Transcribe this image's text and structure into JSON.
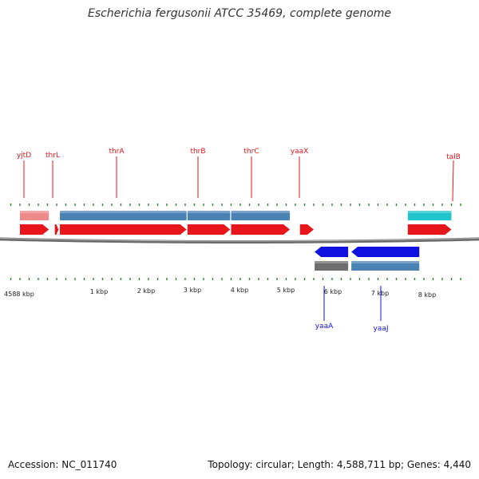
{
  "title": "Escherichia fergusonii ATCC 35469, complete genome",
  "accession": "Accession: NC_011740",
  "stats": "Topology: circular; Length: 4,588,711 bp; Genes: 4,440",
  "colors": {
    "forward_gene": "#e8151b",
    "reverse_gene": "#1010e0",
    "cds_blue": "#4a82b4",
    "cds_grey": "#6e6e6e",
    "cds_pink": "#ee8a8a",
    "cds_cyan": "#20c4cc",
    "tick": "#2a8a2a",
    "backbone": "#6b6b6b"
  },
  "chart_data": {
    "type": "genome-map",
    "scale_labels": [
      "4588 kbp",
      "1 kbp",
      "2 kbp",
      "3 kbp",
      "4 kbp",
      "5 kbp",
      "6 kbp",
      "7 kbp",
      "8 kbp"
    ],
    "scale_kbp": [
      -0.17,
      1,
      2,
      3,
      4,
      5,
      6,
      7,
      8
    ],
    "forward_genes": [
      {
        "name": "yjtD",
        "start_kbp": -0.1,
        "end_kbp": 0.53,
        "track": "gene",
        "color": "#e8151b"
      },
      {
        "name": "thrL",
        "start_kbp": 0.66,
        "end_kbp": 0.74,
        "track": "gene",
        "color": "#e8151b"
      },
      {
        "name": "thrA",
        "start_kbp": 0.77,
        "end_kbp": 3.53,
        "track": "gene",
        "color": "#e8151b"
      },
      {
        "name": "thrB",
        "start_kbp": 3.55,
        "end_kbp": 4.48,
        "track": "gene",
        "color": "#e8151b"
      },
      {
        "name": "thrC",
        "start_kbp": 4.5,
        "end_kbp": 5.78,
        "track": "gene",
        "color": "#e8151b"
      },
      {
        "name": "yaaX",
        "start_kbp": 6.0,
        "end_kbp": 6.3,
        "track": "gene",
        "color": "#e8151b"
      },
      {
        "name": "talB",
        "start_kbp": 8.35,
        "end_kbp": 9.3,
        "track": "gene",
        "color": "#e8151b"
      }
    ],
    "forward_cds": [
      {
        "start_kbp": -0.1,
        "end_kbp": 0.53,
        "color": "#ee8a8a"
      },
      {
        "start_kbp": 0.77,
        "end_kbp": 3.53,
        "color": "#4a82b4"
      },
      {
        "start_kbp": 3.55,
        "end_kbp": 4.48,
        "color": "#4a82b4"
      },
      {
        "start_kbp": 4.5,
        "end_kbp": 5.78,
        "color": "#4a82b4"
      },
      {
        "start_kbp": 8.35,
        "end_kbp": 9.3,
        "color": "#20c4cc"
      }
    ],
    "reverse_genes": [
      {
        "name": "yaaA",
        "start_kbp": 6.32,
        "end_kbp": 7.05,
        "color": "#1010e0"
      },
      {
        "name": "yaaJ",
        "start_kbp": 7.12,
        "end_kbp": 8.6,
        "color": "#1010e0"
      }
    ],
    "reverse_cds": [
      {
        "start_kbp": 6.32,
        "end_kbp": 7.05,
        "color": "#6e6e6e"
      },
      {
        "start_kbp": 7.12,
        "end_kbp": 8.6,
        "color": "#4a82b4"
      }
    ]
  }
}
